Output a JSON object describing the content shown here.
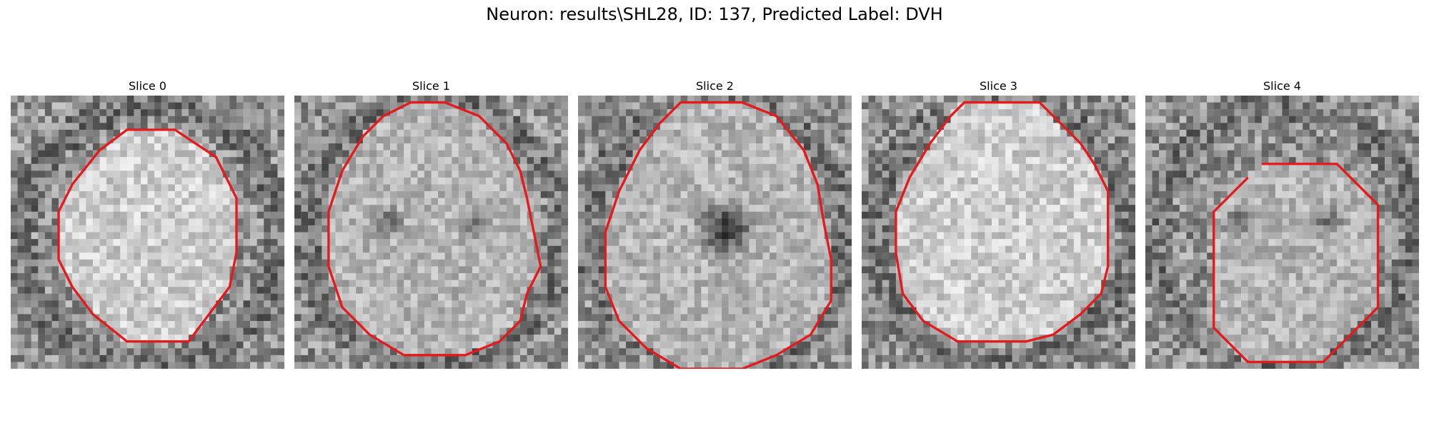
{
  "figure": {
    "title": "Neuron: results\\SHL28, ID: 137, Predicted Label: DVH"
  },
  "contour_color": "#e41a1c",
  "slices": [
    {
      "title": "Slice 0",
      "brightness": "bright",
      "dark_center": false,
      "contour": [
        [
          17,
          5
        ],
        [
          24,
          5
        ],
        [
          30,
          9
        ],
        [
          33,
          15
        ],
        [
          33,
          23
        ],
        [
          32,
          28
        ],
        [
          29,
          32
        ],
        [
          26,
          36
        ],
        [
          17,
          36
        ],
        [
          12,
          32
        ],
        [
          9,
          28
        ],
        [
          7,
          24
        ],
        [
          7,
          17
        ],
        [
          9,
          13
        ],
        [
          13,
          8
        ]
      ]
    },
    {
      "title": "Slice 1",
      "brightness": "mid",
      "dark_center": false,
      "contour": [
        [
          17,
          1
        ],
        [
          22,
          1
        ],
        [
          27,
          3
        ],
        [
          31,
          7
        ],
        [
          33,
          11
        ],
        [
          34,
          15
        ],
        [
          35,
          20
        ],
        [
          36,
          25
        ],
        [
          34,
          29
        ],
        [
          33,
          33
        ],
        [
          30,
          36
        ],
        [
          25,
          38
        ],
        [
          16,
          38
        ],
        [
          11,
          35
        ],
        [
          7,
          31
        ],
        [
          5,
          25
        ],
        [
          5,
          17
        ],
        [
          7,
          11
        ],
        [
          10,
          6
        ],
        [
          13,
          3
        ]
      ]
    },
    {
      "title": "Slice 2",
      "brightness": "mid",
      "dark_center": true,
      "contour": [
        [
          15,
          1
        ],
        [
          24,
          1
        ],
        [
          29,
          3
        ],
        [
          33,
          8
        ],
        [
          35,
          13
        ],
        [
          36,
          19
        ],
        [
          37,
          24
        ],
        [
          37,
          30
        ],
        [
          34,
          35
        ],
        [
          29,
          38
        ],
        [
          24,
          40
        ],
        [
          15,
          40
        ],
        [
          10,
          37
        ],
        [
          6,
          33
        ],
        [
          4,
          28
        ],
        [
          4,
          20
        ],
        [
          6,
          14
        ],
        [
          9,
          8
        ],
        [
          12,
          4
        ]
      ]
    },
    {
      "title": "Slice 3",
      "brightness": "bright",
      "dark_center": false,
      "contour": [
        [
          15,
          1
        ],
        [
          26,
          1
        ],
        [
          29,
          4
        ],
        [
          32,
          7
        ],
        [
          34,
          10
        ],
        [
          36,
          14
        ],
        [
          36,
          20
        ],
        [
          36,
          25
        ],
        [
          35,
          29
        ],
        [
          32,
          32
        ],
        [
          28,
          35
        ],
        [
          24,
          36
        ],
        [
          14,
          36
        ],
        [
          9,
          33
        ],
        [
          6,
          29
        ],
        [
          5,
          23
        ],
        [
          5,
          17
        ],
        [
          7,
          12
        ],
        [
          10,
          7
        ],
        [
          13,
          3
        ]
      ]
    },
    {
      "title": "Slice 4",
      "brightness": "mid",
      "dark_center": false,
      "contour": [
        [
          17,
          10
        ],
        [
          28,
          10
        ],
        [
          31,
          13
        ],
        [
          34,
          16
        ],
        [
          34,
          26
        ],
        [
          34,
          31
        ],
        [
          31,
          34
        ],
        [
          28,
          37
        ],
        [
          26,
          39
        ],
        [
          15,
          39
        ],
        [
          12,
          36
        ],
        [
          10,
          34
        ],
        [
          10,
          26
        ],
        [
          10,
          17
        ],
        [
          12,
          15
        ],
        [
          15,
          12
        ]
      ],
      "open": true
    }
  ]
}
